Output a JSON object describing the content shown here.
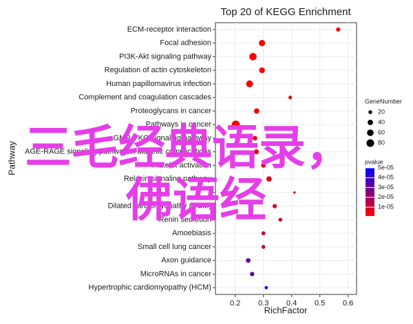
{
  "chart_data": {
    "type": "scatter",
    "title": "Top 20 of KEGG Enrichment",
    "x_label": "RichFactor",
    "y_label": "Pathway",
    "categories": [
      "ECM-receptor interaction",
      "Focal adhesion",
      "PI3K-Akt signaling pathway",
      "Regulation of actin cytoskeleton",
      "Human papillomavirus infection",
      "Complement and coagulation cascades",
      "Proteoglycans in cancer",
      "Pathways in cancer",
      "cGMP-PKG signaling pathway",
      "AGE-RAGE signaling pathway in diabetic complications",
      "Platelet activation",
      "Relaxin signaling pathway",
      null,
      "Dilated cardiomyopathy (DCM)",
      "Renin secretion",
      "Amoebiasis",
      "Small cell lung cancer",
      "Axon guidance",
      "MicroRNAs in cancer",
      "Hypertrophic cardiomyopathy (HCM)"
    ],
    "x": [
      0.565,
      0.295,
      0.263,
      0.295,
      0.251,
      0.395,
      0.276,
      0.202,
      0.27,
      0.275,
      0.3,
      0.32,
      0.41,
      0.34,
      0.36,
      0.3,
      0.3,
      0.246,
      0.26,
      0.31
    ],
    "gene_number": [
      25,
      55,
      75,
      45,
      65,
      18,
      40,
      90,
      30,
      35,
      30,
      40,
      8,
      25,
      20,
      22,
      20,
      30,
      25,
      15
    ],
    "pvalue": [
      1e-06,
      1e-06,
      1e-06,
      2e-06,
      1e-06,
      3e-06,
      3e-06,
      1e-06,
      5e-06,
      5e-06,
      6e-06,
      6e-06,
      8e-06,
      8e-06,
      1e-05,
      1.2e-05,
      1.3e-05,
      2.8e-05,
      3.4e-05,
      5e-05
    ],
    "xlim": [
      0.13,
      0.63
    ],
    "xticks": [
      0.2,
      0.3,
      0.4,
      0.5,
      0.6
    ],
    "size_legend_title": "GeneNumber",
    "size_legend": [
      20,
      40,
      60,
      80
    ],
    "color_legend_title": "pvalue",
    "clim": [
      1e-06,
      5e-05
    ],
    "color_ticks": [
      {
        "value": 5e-05,
        "label": "5e-05"
      },
      {
        "value": 4e-05,
        "label": "4e-05"
      },
      {
        "value": 3e-05,
        "label": "3e-05"
      },
      {
        "value": 2e-05,
        "label": "2e-05"
      },
      {
        "value": 1e-05,
        "label": "1e-05"
      }
    ],
    "color_low": "#ff0000",
    "color_high": "#0000ff",
    "grid": true
  },
  "overlay_text": [
    "三毛经典语录，",
    "佛语经"
  ]
}
